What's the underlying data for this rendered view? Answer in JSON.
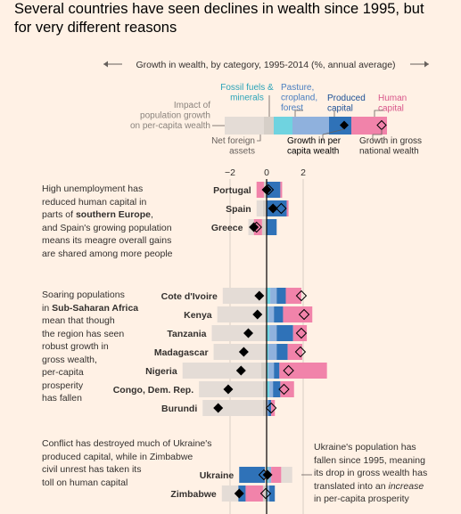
{
  "title_lines": [
    "Several countries have seen declines in wealth since 1995, but",
    "for very different reasons"
  ],
  "colors": {
    "background": "#fff1e5",
    "population": "#e4dcd6",
    "netforeign": "#d6cfc8",
    "fossil": "#6fd3e0",
    "pasture": "#8fb1dd",
    "produced": "#2f72b8",
    "human": "#f183aa",
    "zero_line": "#000000",
    "grid": "#cfc6bd"
  },
  "legend": {
    "axis_label": "Growth in wealth, by category, 1995-2014 (%, annual average)",
    "fossil_lines": [
      "Fossil fuels &",
      "minerals"
    ],
    "pasture_lines": [
      "Pasture,",
      "cropland,",
      "forest"
    ],
    "produced_lines": [
      "Produced",
      "capital"
    ],
    "human_lines": [
      "Human",
      "capital"
    ],
    "population_lines": [
      "Impact of",
      "population growth",
      "on per-capita wealth"
    ],
    "netforeign_lines": [
      "Net foreign",
      "assets"
    ],
    "percapita_lines": [
      "Growth in per",
      "capita wealth"
    ],
    "gross_lines": [
      "Growth in gross",
      "national wealth"
    ]
  },
  "chart_data": {
    "type": "bar",
    "orientation": "horizontal-stacked",
    "xlim": [
      -5.3,
      3.6
    ],
    "x_ticks": [
      -2,
      0,
      2
    ],
    "grid": true,
    "components": [
      "population",
      "netforeign",
      "fossil",
      "pasture",
      "produced",
      "human"
    ],
    "groups": [
      {
        "name": "southern-europe",
        "countries": [
          {
            "name": "Portugal",
            "population": 0,
            "fossil": 0,
            "pasture": 0,
            "produced": 0.75,
            "human": 0.1,
            "netforeign": -0.15,
            "negatives": {
              "human": -0.4
            },
            "per_capita": 0.0,
            "gross": 0.1
          },
          {
            "name": "Spain",
            "population": -0.35,
            "fossil": 0,
            "pasture": 0,
            "produced": 1.1,
            "human": 0.1,
            "netforeign": -0.2,
            "negatives": {},
            "per_capita": 0.35,
            "gross": 0.8
          },
          {
            "name": "Greece",
            "population": -0.3,
            "fossil": 0,
            "pasture": 0,
            "produced": 0.55,
            "human": 0,
            "netforeign": -0.25,
            "negatives": {
              "human": -0.45
            },
            "per_capita": -0.7,
            "gross": -0.55
          }
        ]
      },
      {
        "name": "sub-saharan-africa",
        "countries": [
          {
            "name": "Cote d'Ivoire",
            "population": -2.3,
            "netforeign": -0.1,
            "fossil": 0.2,
            "pasture": 0.35,
            "produced": 0.5,
            "human": 0.85,
            "per_capita": -0.4,
            "gross": 1.9
          },
          {
            "name": "Kenya",
            "population": -2.6,
            "netforeign": -0.1,
            "fossil": 0.1,
            "pasture": 0.3,
            "produced": 0.5,
            "human": 1.6,
            "per_capita": -0.5,
            "gross": 2.05
          },
          {
            "name": "Tanzania",
            "population": -2.9,
            "netforeign": -0.1,
            "fossil": 0.15,
            "pasture": 0.4,
            "produced": 0.9,
            "human": 0.75,
            "per_capita": -1.0,
            "gross": 1.9
          },
          {
            "name": "Madagascar",
            "population": -2.8,
            "netforeign": -0.1,
            "fossil": 0.1,
            "pasture": 0.45,
            "produced": 0.6,
            "human": 0.8,
            "per_capita": -1.25,
            "gross": 1.85
          },
          {
            "name": "Nigeria",
            "population": -4.3,
            "netforeign": -0.3,
            "fossil": 0.1,
            "pasture": 0.3,
            "produced": 0.3,
            "human": 2.6,
            "per_capita": -1.4,
            "gross": 1.2
          },
          {
            "name": "Congo, Dem. Rep.",
            "population": -3.5,
            "netforeign": -0.2,
            "fossil": 0.15,
            "pasture": 0.2,
            "produced": 0.4,
            "human": 0.75,
            "per_capita": -2.1,
            "gross": 0.95
          },
          {
            "name": "Burundi",
            "population": -3.3,
            "netforeign": -0.2,
            "fossil": 0,
            "pasture": 0.1,
            "produced": 0.15,
            "human": 0.2,
            "per_capita": -2.65,
            "gross": 0.25
          }
        ]
      },
      {
        "name": "ukraine-zimbabwe",
        "countries": [
          {
            "name": "Ukraine",
            "population": 0.6,
            "fossil": 0.1,
            "pasture": 0.15,
            "produced": 0,
            "human": 0.55,
            "netforeign": -0.1,
            "negatives": {
              "produced": -1.4
            },
            "per_capita": 0.05,
            "gross": -0.15
          },
          {
            "name": "Zimbabwe",
            "population": -0.9,
            "fossil": 0.05,
            "pasture": 0.1,
            "produced": 0.3,
            "human": 0,
            "netforeign": -0.2,
            "negatives": {
              "human": -0.95,
              "produced": -0.4
            },
            "per_capita": -1.5,
            "gross": -0.05
          }
        ]
      }
    ]
  },
  "notes": {
    "southern_europe": {
      "lines": [
        [
          {
            "t": "High unemployment has"
          }
        ],
        [
          {
            "t": "reduced human capital in"
          }
        ],
        [
          {
            "t": "parts of "
          },
          {
            "t": "southern Europe",
            "b": true
          },
          {
            "t": ","
          }
        ],
        [
          {
            "t": "and Spain's growing population"
          }
        ],
        [
          {
            "t": "means its meagre overall gains"
          }
        ],
        [
          {
            "t": "are shared among more people"
          }
        ]
      ]
    },
    "africa": {
      "lines": [
        [
          {
            "t": "Soaring populations"
          }
        ],
        [
          {
            "t": "in "
          },
          {
            "t": "Sub-Saharan Africa",
            "b": true
          }
        ],
        [
          {
            "t": "mean that though"
          }
        ],
        [
          {
            "t": "the region has seen"
          }
        ],
        [
          {
            "t": "robust growth in"
          }
        ],
        [
          {
            "t": "gross wealth,"
          }
        ],
        [
          {
            "t": "per-capita"
          }
        ],
        [
          {
            "t": "prosperity"
          }
        ],
        [
          {
            "t": "has fallen"
          }
        ]
      ]
    },
    "ukraine_zimbabwe": {
      "lines": [
        [
          {
            "t": "Conflict has destroyed much of Ukraine's"
          }
        ],
        [
          {
            "t": "produced capital, while in Zimbabwe"
          }
        ],
        [
          {
            "t": "civil unrest has taken its"
          }
        ],
        [
          {
            "t": "toll on human capital"
          }
        ]
      ]
    },
    "ukraine_population": {
      "lines": [
        [
          {
            "t": "Ukraine's population has"
          }
        ],
        [
          {
            "t": "fallen since 1995, meaning"
          }
        ],
        [
          {
            "t": "its drop in gross wealth has"
          }
        ],
        [
          {
            "t": "translated into an "
          },
          {
            "t": "increase",
            "i": true
          }
        ],
        [
          {
            "t": "in per-capita prosperity"
          }
        ]
      ]
    }
  }
}
